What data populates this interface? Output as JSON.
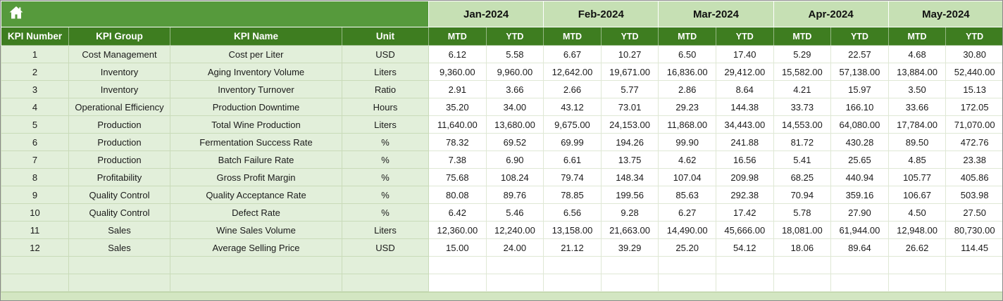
{
  "table": {
    "left_headers": [
      "KPI Number",
      "KPI Group",
      "KPI Name",
      "Unit"
    ],
    "months": [
      "Jan-2024",
      "Feb-2024",
      "Mar-2024",
      "Apr-2024",
      "May-2024"
    ],
    "sub_headers": [
      "MTD",
      "YTD"
    ],
    "rows": [
      {
        "num": "1",
        "group": "Cost Management",
        "name": "Cost per Liter",
        "unit": "USD",
        "values": [
          "6.12",
          "5.58",
          "6.67",
          "10.27",
          "6.50",
          "17.40",
          "5.29",
          "22.57",
          "4.68",
          "30.80"
        ]
      },
      {
        "num": "2",
        "group": "Inventory",
        "name": "Aging Inventory Volume",
        "unit": "Liters",
        "values": [
          "9,360.00",
          "9,960.00",
          "12,642.00",
          "19,671.00",
          "16,836.00",
          "29,412.00",
          "15,582.00",
          "57,138.00",
          "13,884.00",
          "52,440.00"
        ]
      },
      {
        "num": "3",
        "group": "Inventory",
        "name": "Inventory Turnover",
        "unit": "Ratio",
        "values": [
          "2.91",
          "3.66",
          "2.66",
          "5.77",
          "2.86",
          "8.64",
          "4.21",
          "15.97",
          "3.50",
          "15.13"
        ]
      },
      {
        "num": "4",
        "group": "Operational Efficiency",
        "name": "Production Downtime",
        "unit": "Hours",
        "values": [
          "35.20",
          "34.00",
          "43.12",
          "73.01",
          "29.23",
          "144.38",
          "33.73",
          "166.10",
          "33.66",
          "172.05"
        ]
      },
      {
        "num": "5",
        "group": "Production",
        "name": "Total Wine Production",
        "unit": "Liters",
        "values": [
          "11,640.00",
          "13,680.00",
          "9,675.00",
          "24,153.00",
          "11,868.00",
          "34,443.00",
          "14,553.00",
          "64,080.00",
          "17,784.00",
          "71,070.00"
        ]
      },
      {
        "num": "6",
        "group": "Production",
        "name": "Fermentation Success Rate",
        "unit": "%",
        "values": [
          "78.32",
          "69.52",
          "69.99",
          "194.26",
          "99.90",
          "241.88",
          "81.72",
          "430.28",
          "89.50",
          "472.76"
        ]
      },
      {
        "num": "7",
        "group": "Production",
        "name": "Batch Failure Rate",
        "unit": "%",
        "values": [
          "7.38",
          "6.90",
          "6.61",
          "13.75",
          "4.62",
          "16.56",
          "5.41",
          "25.65",
          "4.85",
          "23.38"
        ]
      },
      {
        "num": "8",
        "group": "Profitability",
        "name": "Gross Profit Margin",
        "unit": "%",
        "values": [
          "75.68",
          "108.24",
          "79.74",
          "148.34",
          "107.04",
          "209.98",
          "68.25",
          "440.94",
          "105.77",
          "405.86"
        ]
      },
      {
        "num": "9",
        "group": "Quality Control",
        "name": "Quality Acceptance Rate",
        "unit": "%",
        "values": [
          "80.08",
          "89.76",
          "78.85",
          "199.56",
          "85.63",
          "292.38",
          "70.94",
          "359.16",
          "106.67",
          "503.98"
        ]
      },
      {
        "num": "10",
        "group": "Quality Control",
        "name": "Defect Rate",
        "unit": "%",
        "values": [
          "6.42",
          "5.46",
          "6.56",
          "9.28",
          "6.27",
          "17.42",
          "5.78",
          "27.90",
          "4.50",
          "27.50"
        ]
      },
      {
        "num": "11",
        "group": "Sales",
        "name": "Wine Sales Volume",
        "unit": "Liters",
        "values": [
          "12,360.00",
          "12,240.00",
          "13,158.00",
          "21,663.00",
          "14,490.00",
          "45,666.00",
          "18,081.00",
          "61,944.00",
          "12,948.00",
          "80,730.00"
        ]
      },
      {
        "num": "12",
        "group": "Sales",
        "name": "Average Selling Price",
        "unit": "USD",
        "values": [
          "15.00",
          "24.00",
          "21.12",
          "39.29",
          "25.20",
          "54.12",
          "18.06",
          "89.64",
          "26.62",
          "114.45"
        ]
      }
    ],
    "empty_row_count": 2
  },
  "icons": {
    "home": "home-icon"
  },
  "colors": {
    "header_dark_green": "#3e7d20",
    "corner_green": "#569a3c",
    "month_light_green": "#c6e0b4",
    "row_left_green": "#e2efda",
    "value_cell_white": "#ffffff",
    "footer_strip_green": "#d3e6c2"
  }
}
